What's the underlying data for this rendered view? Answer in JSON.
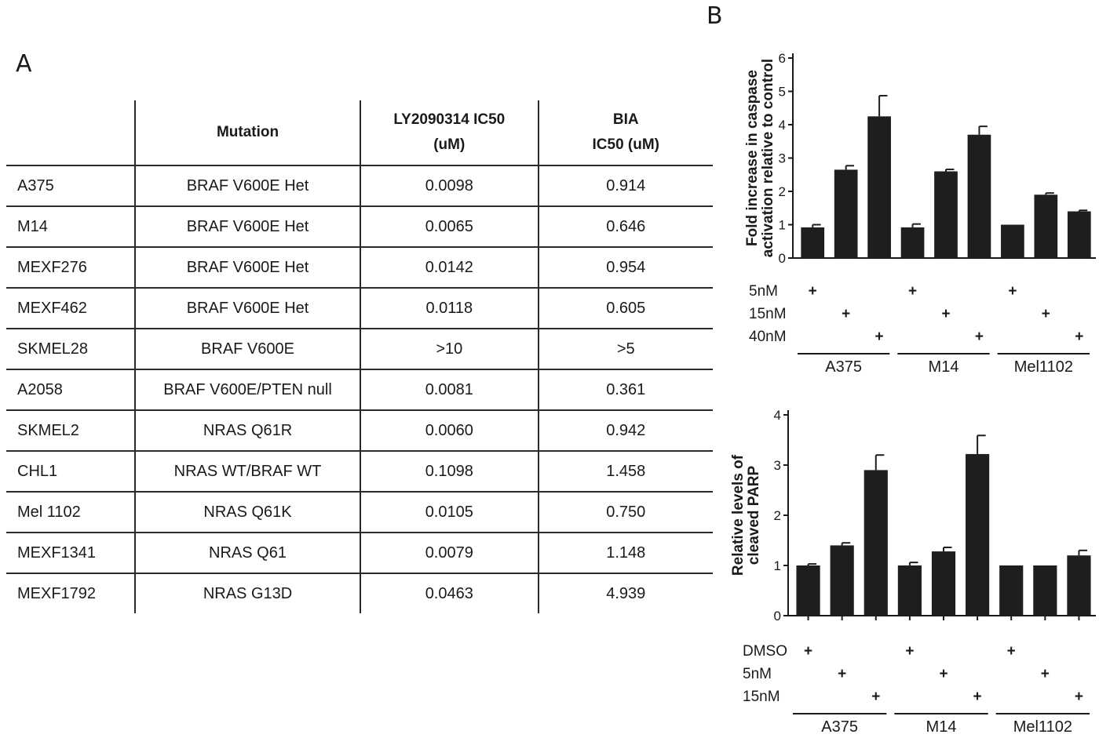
{
  "panels": {
    "a": "A",
    "b": "B"
  },
  "table": {
    "headers": [
      "",
      "Mutation",
      "LY2090314 IC50\n(uM)",
      "BIA\nIC50 (uM)"
    ],
    "rows": [
      [
        "A375",
        "BRAF V600E Het",
        "0.0098",
        "0.914"
      ],
      [
        "M14",
        "BRAF V600E Het",
        "0.0065",
        "0.646"
      ],
      [
        "MEXF276",
        "BRAF V600E Het",
        "0.0142",
        "0.954"
      ],
      [
        "MEXF462",
        "BRAF V600E Het",
        "0.0118",
        "0.605"
      ],
      [
        "SKMEL28",
        "BRAF V600E",
        ">10",
        ">5"
      ],
      [
        "A2058",
        "BRAF V600E/PTEN null",
        "0.0081",
        "0.361"
      ],
      [
        "SKMEL2",
        "NRAS Q61R",
        "0.0060",
        "0.942"
      ],
      [
        "CHL1",
        "NRAS WT/BRAF WT",
        "0.1098",
        "1.458"
      ],
      [
        "Mel 1102",
        "NRAS Q61K",
        "0.0105",
        "0.750"
      ],
      [
        "MEXF1341",
        "NRAS Q61",
        "0.0079",
        "1.148"
      ],
      [
        "MEXF1792",
        "NRAS G13D",
        "0.0463",
        "4.939"
      ]
    ]
  },
  "chart_data": [
    {
      "type": "bar",
      "ylabel_lines": [
        "Fold increase in caspase",
        "activation relative to control"
      ],
      "ylim": [
        0,
        6
      ],
      "yticks": [
        0,
        1,
        2,
        3,
        4,
        5,
        6
      ],
      "groups": [
        "A375",
        "M14",
        "Mel1102"
      ],
      "conditions": [
        "5nM",
        "15nM",
        "40nM"
      ],
      "values": [
        0.92,
        2.65,
        4.25,
        0.92,
        2.6,
        3.7,
        1.0,
        1.9,
        1.4
      ],
      "errors": [
        0.08,
        0.12,
        0.62,
        0.1,
        0.06,
        0.25,
        0.0,
        0.05,
        0.03
      ],
      "color": "#1e1e1e"
    },
    {
      "type": "bar",
      "ylabel_lines": [
        "Relative levels of",
        "cleaved PARP"
      ],
      "ylim": [
        0,
        4
      ],
      "yticks": [
        0,
        1,
        2,
        3,
        4
      ],
      "groups": [
        "A375",
        "M14",
        "Mel1102"
      ],
      "conditions": [
        "DMSO",
        "5nM",
        "15nM"
      ],
      "values": [
        1.0,
        1.4,
        2.9,
        1.0,
        1.28,
        3.22,
        1.0,
        1.0,
        1.2
      ],
      "errors": [
        0.03,
        0.05,
        0.3,
        0.06,
        0.08,
        0.37,
        0.0,
        0.0,
        0.1
      ],
      "color": "#1e1e1e"
    }
  ]
}
